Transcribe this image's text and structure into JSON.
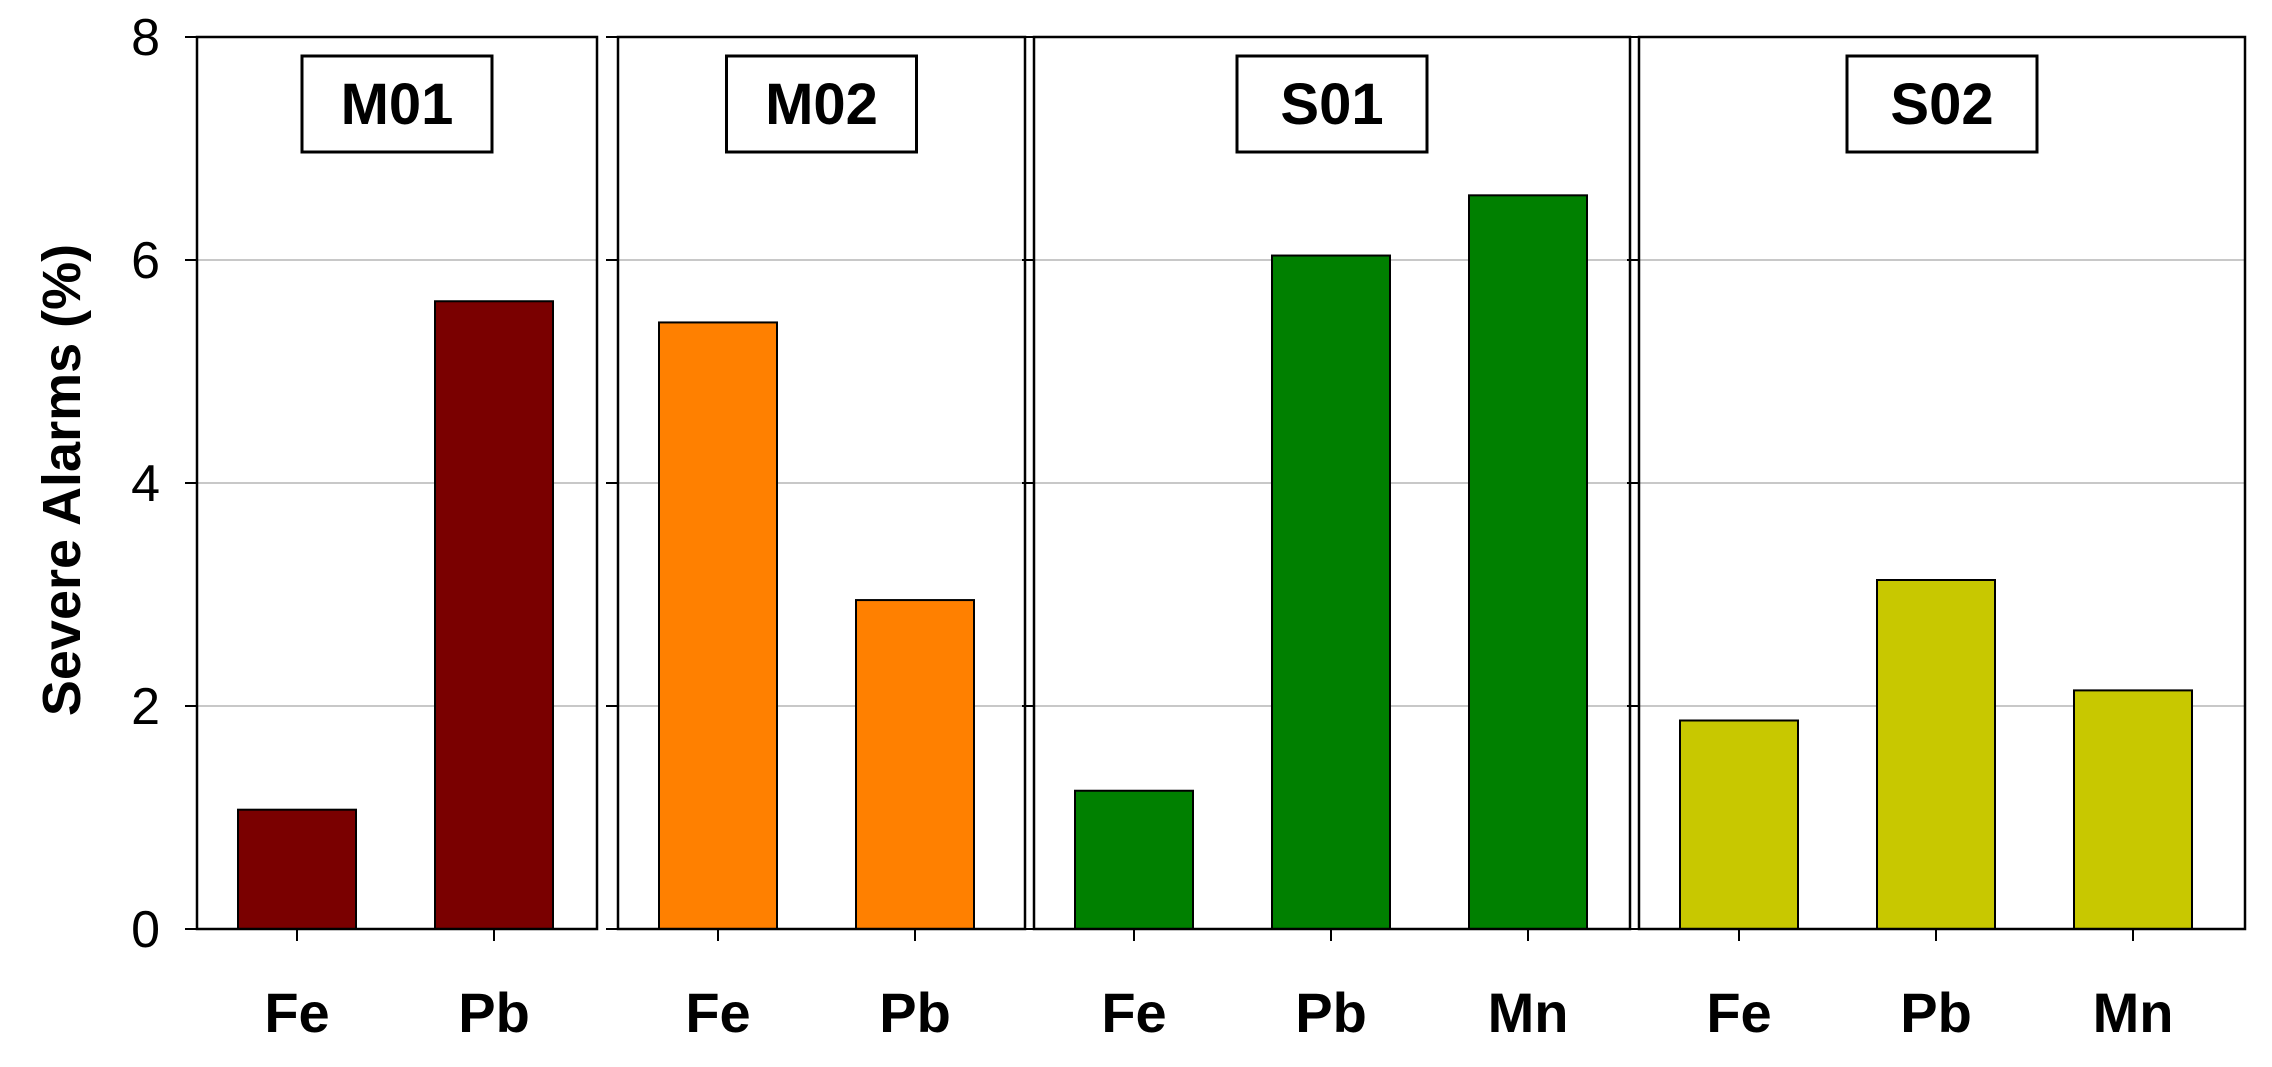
{
  "chart_data": {
    "type": "bar",
    "ylabel": "Severe Alarms (%)",
    "ylim": [
      0,
      8
    ],
    "yticks": [
      0,
      2,
      4,
      6,
      8
    ],
    "grid": true,
    "panels": [
      {
        "title": "M01",
        "color": "#7a0000",
        "categories": [
          "Fe",
          "Pb"
        ],
        "values": [
          1.07,
          5.63
        ]
      },
      {
        "title": "M02",
        "color": "#ff8000",
        "categories": [
          "Fe",
          "Pb"
        ],
        "values": [
          5.44,
          2.95
        ]
      },
      {
        "title": "S01",
        "color": "#008000",
        "categories": [
          "Fe",
          "Pb",
          "Mn"
        ],
        "values": [
          1.24,
          6.04,
          6.58
        ]
      },
      {
        "title": "S02",
        "color": "#c8c800",
        "categories": [
          "Fe",
          "Pb",
          "Mn"
        ],
        "values": [
          1.87,
          3.13,
          2.14
        ]
      }
    ]
  }
}
